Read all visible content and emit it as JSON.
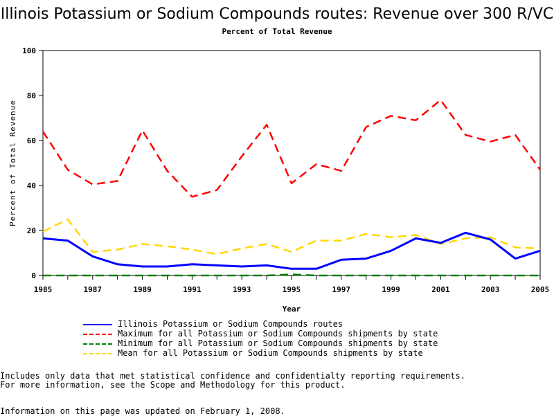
{
  "chart_data": {
    "type": "line",
    "title": "Illinois Potassium or Sodium Compounds routes: Revenue over 300 R/VC",
    "subtitle": "Percent of Total Revenue",
    "xlabel": "Year",
    "ylabel": "Percent of Total Revenue",
    "xlim": [
      1985,
      2005
    ],
    "ylim": [
      0,
      100
    ],
    "grid": false,
    "legend_position": "bottom",
    "x_ticks": [
      "1985",
      "1987",
      "1989",
      "1991",
      "1993",
      "1995",
      "1997",
      "1999",
      "2001",
      "2003",
      "2005"
    ],
    "y_ticks": [
      "0",
      "20",
      "40",
      "60",
      "80",
      "100"
    ],
    "x": [
      1985,
      1986,
      1987,
      1988,
      1989,
      1990,
      1991,
      1992,
      1993,
      1994,
      1995,
      1996,
      1997,
      1998,
      1999,
      2000,
      2001,
      2002,
      2003,
      2004,
      2005
    ],
    "series": [
      {
        "name": "Illinois Potassium or Sodium Compounds routes",
        "color": "#0000ff",
        "dash": "solid",
        "values": [
          16.5,
          15.5,
          8.5,
          5.0,
          4.0,
          4.0,
          5.0,
          4.5,
          4.0,
          4.5,
          3.0,
          3.0,
          7.0,
          7.5,
          11.0,
          16.5,
          14.5,
          19.0,
          16.0,
          7.5,
          11.0
        ]
      },
      {
        "name": "Maximum for all Potassium or Sodium Compounds shipments by state",
        "color": "#ff0000",
        "dash": "dashed",
        "values": [
          64,
          47,
          40.5,
          42,
          64.5,
          46.5,
          35,
          38,
          53,
          67,
          41,
          49.5,
          46.5,
          66,
          71,
          69,
          78,
          62.5,
          59.5,
          62.5,
          47
        ]
      },
      {
        "name": "Minimum for all Potassium or Sodium Compounds shipments by state",
        "color": "#008000",
        "dash": "dashed",
        "values": [
          0,
          0,
          0,
          0,
          0,
          0,
          0,
          0,
          0,
          0,
          0.5,
          0,
          0,
          0,
          0,
          0,
          0,
          0,
          0,
          0,
          0
        ]
      },
      {
        "name": "Mean for all Potassium or Sodium Compounds shipments by state",
        "color": "#ffd700",
        "dash": "dashed",
        "values": [
          19.5,
          25,
          10.5,
          11.5,
          14,
          13,
          11.5,
          9.5,
          12,
          14,
          10.5,
          15.5,
          15.5,
          18.5,
          17,
          18,
          14,
          16.5,
          17,
          12.5,
          12
        ]
      }
    ]
  },
  "notes": {
    "line1": "Includes only data that met statistical confidence and confidentialty reporting requirements.",
    "line2": "For more information, see the Scope and Methodology for this product.",
    "updated": "Information on this page was updated on February 1, 2008."
  }
}
